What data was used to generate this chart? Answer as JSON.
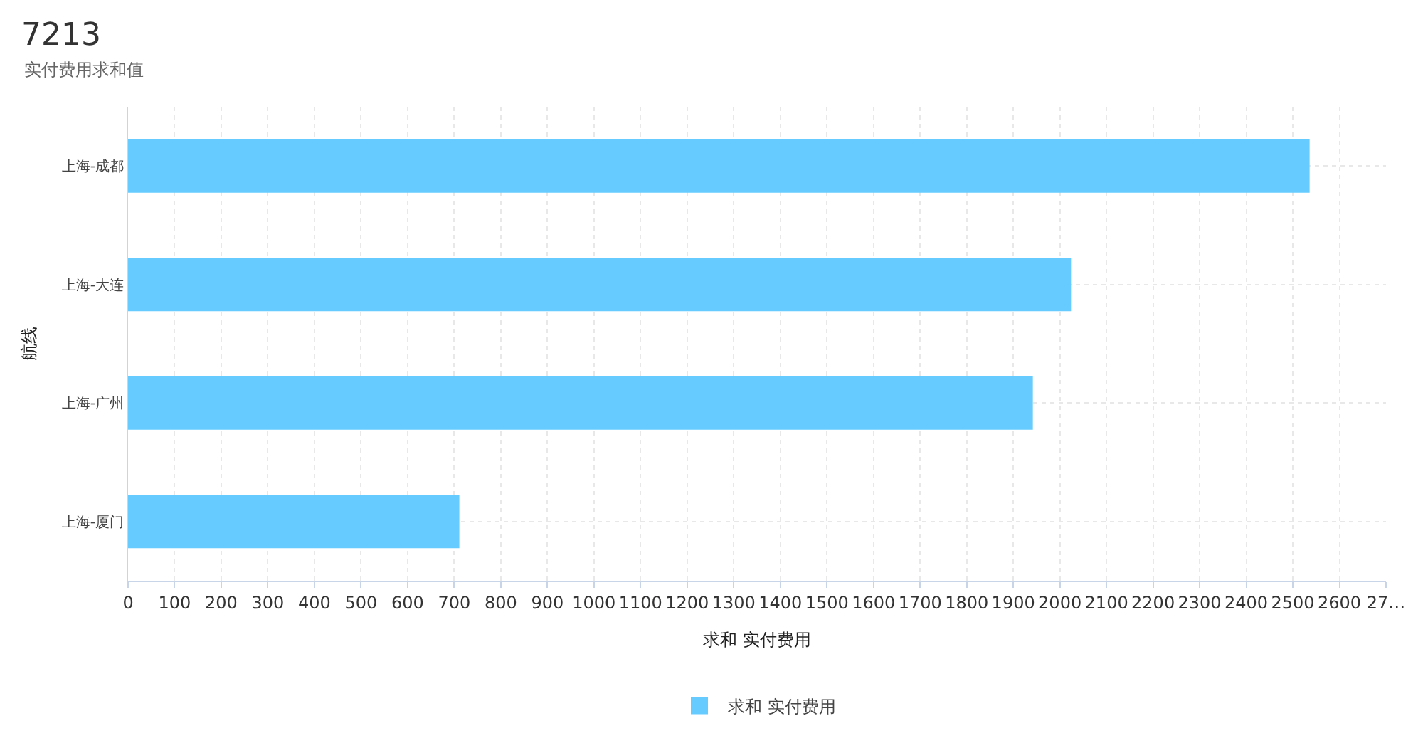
{
  "chart_data": {
    "type": "bar",
    "orientation": "horizontal",
    "title": "7213",
    "subtitle": "实付费用求和值",
    "xlabel": "求和 实付费用",
    "ylabel": "航线",
    "categories": [
      "上海-成都",
      "上海-大连",
      "上海-广州",
      "上海-厦门"
    ],
    "series": [
      {
        "name": "求和 实付费用",
        "color": "#66ccff",
        "values": [
          2536,
          2024,
          1942,
          711
        ]
      }
    ],
    "xlim": [
      0,
      2700
    ],
    "xticks": [
      0,
      100,
      200,
      300,
      400,
      500,
      600,
      700,
      800,
      900,
      1000,
      1100,
      1200,
      1300,
      1400,
      1500,
      1600,
      1700,
      1800,
      1900,
      2000,
      2100,
      2200,
      2300,
      2400,
      2500,
      2600,
      {
        "value": 2700,
        "label": "27…"
      }
    ],
    "grid": true,
    "legend": "bottom"
  }
}
